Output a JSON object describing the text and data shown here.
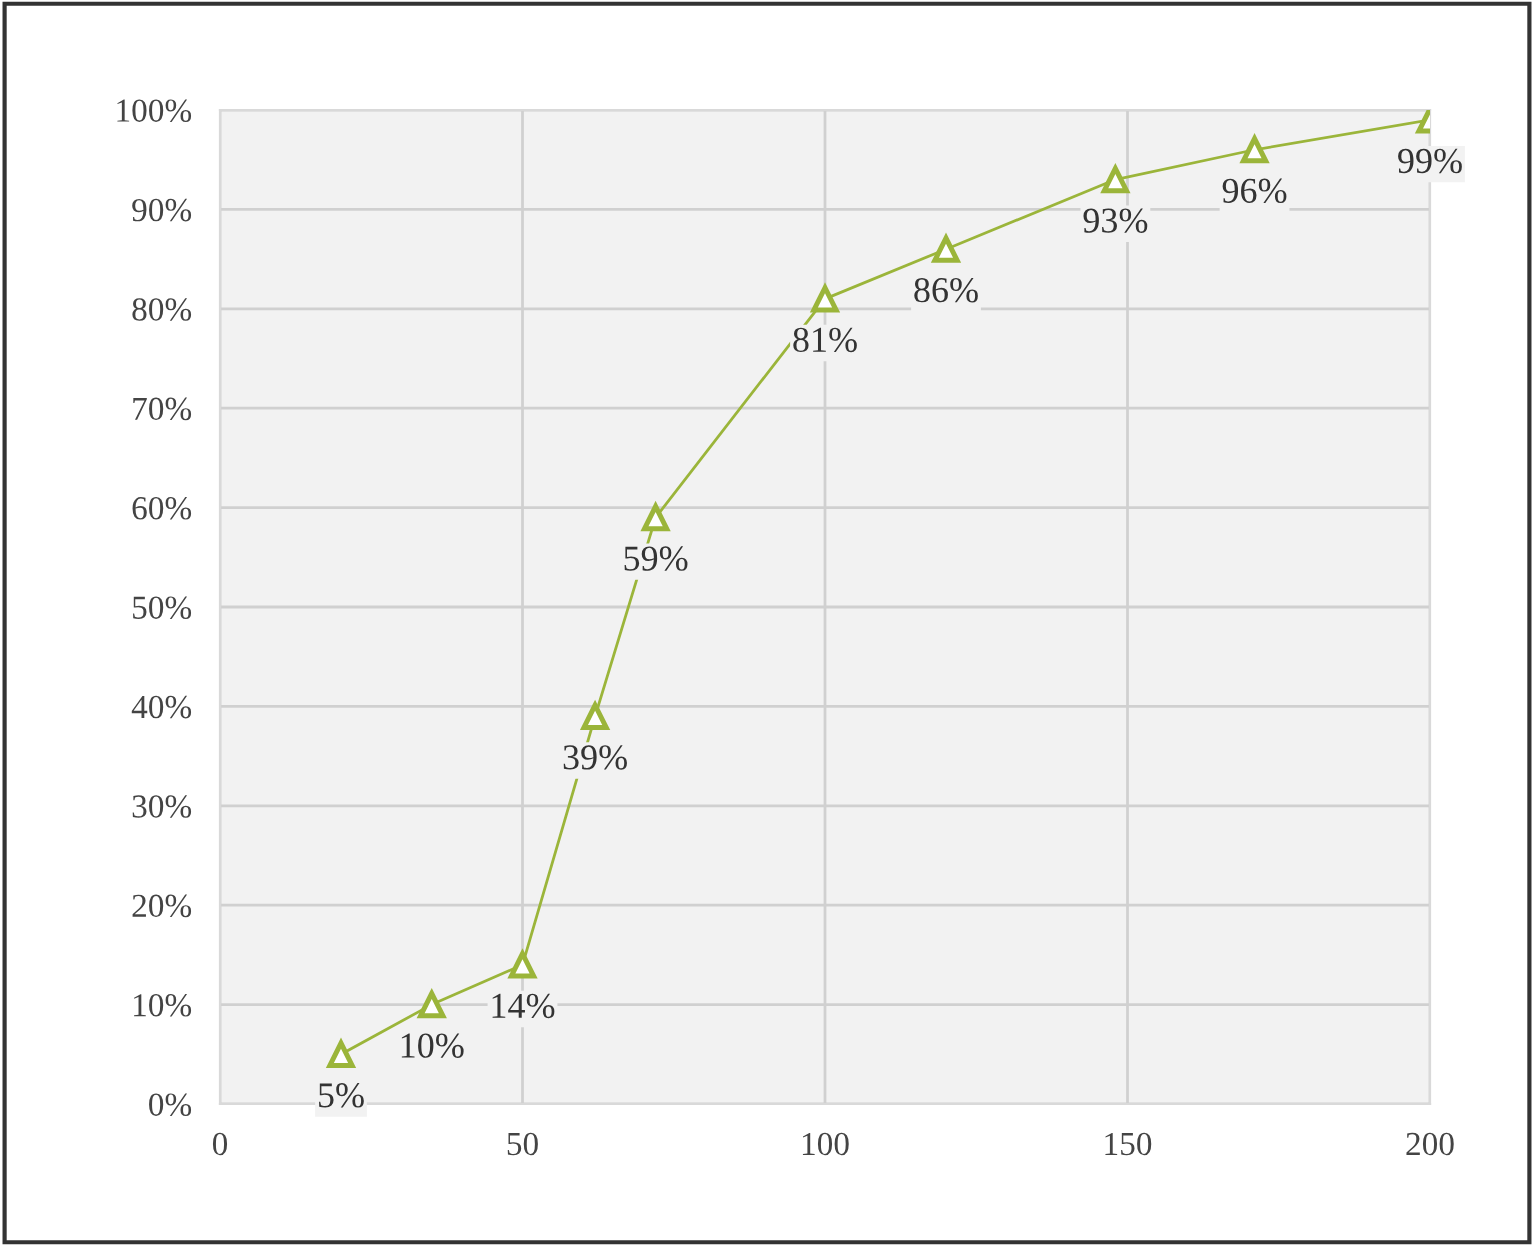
{
  "chart_data": {
    "type": "line",
    "x": [
      20,
      35,
      50,
      62,
      72,
      100,
      120,
      148,
      171,
      200
    ],
    "series": [
      {
        "color": "#9bb53a",
        "values": [
          5,
          10,
          14,
          39,
          59,
          81,
          86,
          93,
          96,
          99
        ],
        "value_labels": [
          "5%",
          "10%",
          "14%",
          "39%",
          "59%",
          "81%",
          "86%",
          "93%",
          "96%",
          "99%"
        ]
      }
    ],
    "xlim": [
      0,
      200
    ],
    "xticks": [
      0,
      50,
      100,
      150,
      200
    ],
    "ylim": [
      0,
      100
    ],
    "yticks": [
      {
        "value": 0,
        "label": "0%"
      },
      {
        "value": 10,
        "label": "10%"
      },
      {
        "value": 20,
        "label": "20%"
      },
      {
        "value": 30,
        "label": "30%"
      },
      {
        "value": 40,
        "label": "40%"
      },
      {
        "value": 50,
        "label": "50%"
      },
      {
        "value": 60,
        "label": "60%"
      },
      {
        "value": 70,
        "label": "70%"
      },
      {
        "value": 80,
        "label": "80%"
      },
      {
        "value": 90,
        "label": "90%"
      },
      {
        "value": 100,
        "label": "100%"
      }
    ],
    "grid": true,
    "marker": "triangle",
    "line_style": "solid"
  }
}
